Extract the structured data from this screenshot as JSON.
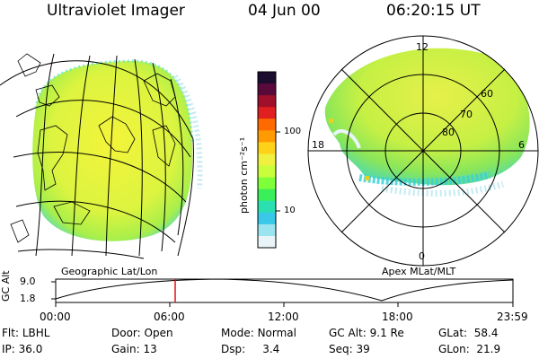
{
  "header": {
    "app_title": "Ultraviolet Imager",
    "date": "04 Jun 00",
    "time": "06:20:15 UT"
  },
  "geo_panel": {
    "caption": "Geographic Lat/Lon"
  },
  "polar_panel": {
    "caption": "Apex MLat/MLT",
    "mlt_labels": [
      "12",
      "18",
      "6",
      "0"
    ],
    "mlat_labels": [
      "60",
      "70",
      "80"
    ]
  },
  "colorbar": {
    "unit_label": "photon cm⁻²s⁻¹",
    "tick_labels": [
      "100",
      "10"
    ],
    "colors": [
      "#1b0d2e",
      "#5a0a3a",
      "#a0102a",
      "#e02020",
      "#ff6a00",
      "#ff9a00",
      "#ffd21a",
      "#f0f040",
      "#c8ff3a",
      "#7fff3a",
      "#3aef5a",
      "#2ae0b0",
      "#3ac8e8",
      "#9ae4f0",
      "#e8f4f8"
    ]
  },
  "altitude_plot": {
    "axis_label": "GC Alt",
    "y_ticks": [
      "9.0",
      "1.8"
    ],
    "time_ticks": [
      "00:00",
      "06:00",
      "12:00",
      "18:00",
      "23:59"
    ],
    "current_time_marker_color": "#e01010"
  },
  "info": {
    "filter_label": "Flt:",
    "filter_value": "LBHL",
    "ip_label": "IP:",
    "ip_value": "36.0",
    "door_label": "Door:",
    "door_value": "Open",
    "gain_label": "Gain:",
    "gain_value": "13",
    "mode_label": "Mode:",
    "mode_value": "Normal",
    "dsp_label": "Dsp:",
    "dsp_value": "3.4",
    "gcalt_label": "GC Alt:",
    "gcalt_value": "9.1 Re",
    "seq_label": "Seq:",
    "seq_value": "39",
    "glat_label": "GLat:",
    "glat_value": "58.4",
    "glon_label": "GLon:",
    "glon_value": "21.9"
  }
}
